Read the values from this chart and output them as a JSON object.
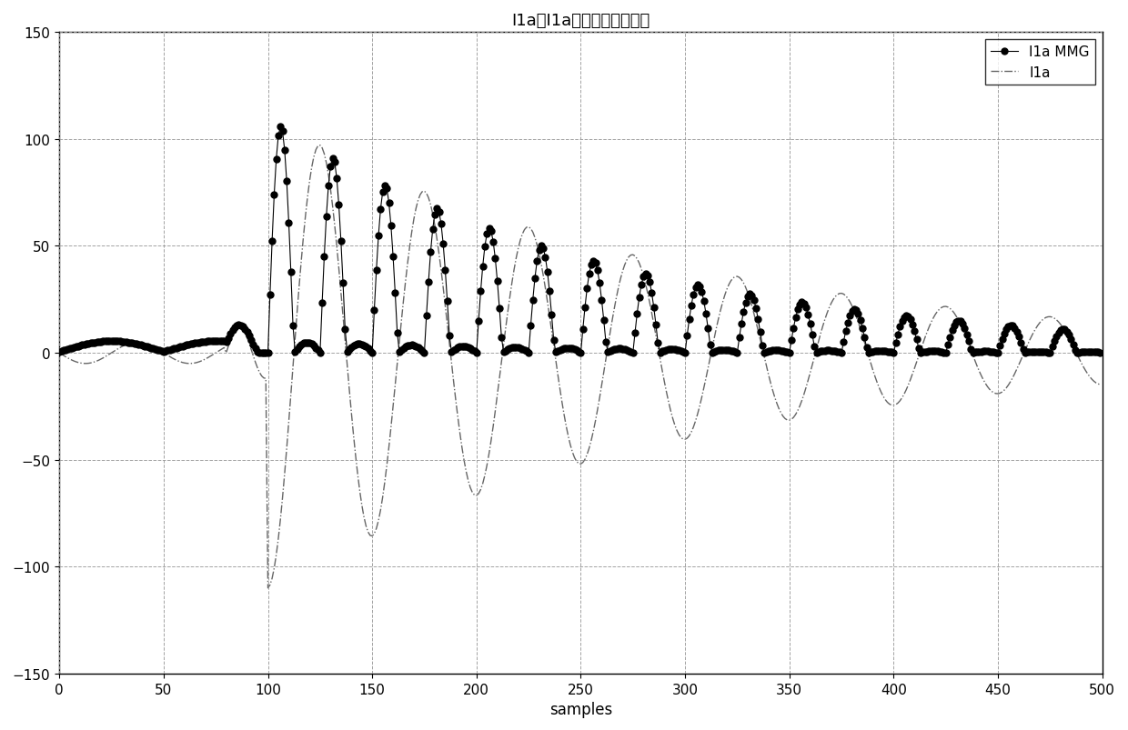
{
  "title": "I1a和I1a的形态梯度的波形",
  "xlabel": "samples",
  "xlim": [
    0,
    500
  ],
  "ylim": [
    -150,
    150
  ],
  "yticks": [
    -150,
    -100,
    -50,
    0,
    50,
    100,
    150
  ],
  "xticks": [
    0,
    50,
    100,
    150,
    200,
    250,
    300,
    350,
    400,
    450,
    500
  ],
  "legend_labels": [
    "I1a MMG",
    "I1a"
  ],
  "background_color": "#ffffff",
  "line_color_mmg": "#000000",
  "line_color_i1a": "#666666",
  "marker_size": 5
}
